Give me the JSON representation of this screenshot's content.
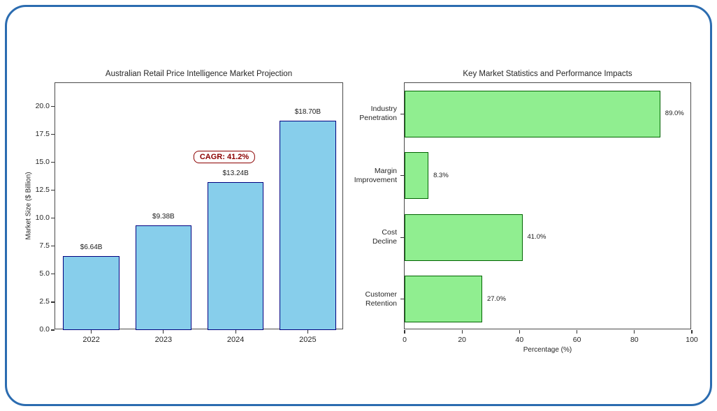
{
  "frame": {
    "border_color": "#2b6cb0",
    "background": "#ffffff"
  },
  "chart_data": [
    {
      "type": "bar",
      "title": "Australian Retail Price Intelligence Market Projection",
      "categories": [
        "2022",
        "2023",
        "2024",
        "2025"
      ],
      "values": [
        6.64,
        9.38,
        13.24,
        18.7
      ],
      "bar_labels": [
        "$6.64B",
        "$9.38B",
        "$13.24B",
        "$18.70B"
      ],
      "xlabel": "",
      "ylabel": "Market Size ($ Billion)",
      "yticks": [
        0.0,
        2.5,
        5.0,
        7.5,
        10.0,
        12.5,
        15.0,
        17.5,
        20.0
      ],
      "ylim": [
        0,
        22.1
      ],
      "bar_fill": "#87CEEB",
      "bar_edge": "#000080",
      "grid": false,
      "legend": false,
      "annotation": {
        "text": "CAGR: 41.2%",
        "color": "#8B0000",
        "background": "#fffdfd"
      }
    },
    {
      "type": "bar_horizontal",
      "title": "Key Market Statistics and Performance Impacts",
      "categories": [
        "Industry\nPenetration",
        "Margin\nImprovement",
        "Cost\nDecline",
        "Customer\nRetention"
      ],
      "values": [
        89.0,
        8.3,
        41.0,
        27.0
      ],
      "bar_labels": [
        "89.0%",
        "8.3%",
        "41.0%",
        "27.0%"
      ],
      "xlabel": "Percentage (%)",
      "ylabel": "",
      "xticks": [
        0,
        20,
        40,
        60,
        80,
        100
      ],
      "xlim": [
        0,
        100
      ],
      "bar_fill": "#90EE90",
      "bar_edge": "#006400",
      "grid": false,
      "legend": false
    }
  ]
}
